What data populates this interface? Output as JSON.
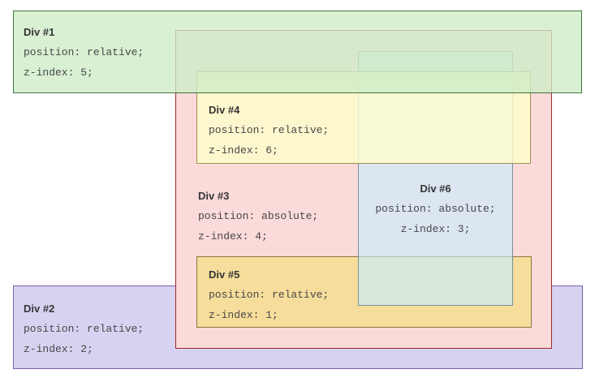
{
  "figure": {
    "description": "CSS stacking context demonstration with six overlapping divs",
    "background": "#ffffff"
  },
  "boxes": {
    "div1": {
      "title": "Div #1",
      "position_rule": "position: relative;",
      "z_index_rule": "z-index: 5;",
      "fill": "#d9f0d2",
      "border": "#457448"
    },
    "div2": {
      "title": "Div #2",
      "position_rule": "position: relative;",
      "z_index_rule": "z-index: 2;",
      "fill": "#d8d2f1",
      "border": "#7c60a5"
    },
    "div3": {
      "title": "Div #3",
      "position_rule": "position: absolute;",
      "z_index_rule": "z-index: 4;",
      "fill": "#fbdada",
      "border": "#a02828"
    },
    "div4": {
      "title": "Div #4",
      "position_rule": "position: relative;",
      "z_index_rule": "z-index: 6;",
      "fill": "#fbf6cc",
      "border": "#9f884e"
    },
    "div5": {
      "title": "Div #5",
      "position_rule": "position: relative;",
      "z_index_rule": "z-index: 1;",
      "fill": "#f6dd9c",
      "border": "#8d743c"
    },
    "div6": {
      "title": "Div #6",
      "position_rule": "position: absolute;",
      "z_index_rule": "z-index: 3;",
      "fill": "#dae6f1",
      "border": "#828d9b"
    }
  }
}
